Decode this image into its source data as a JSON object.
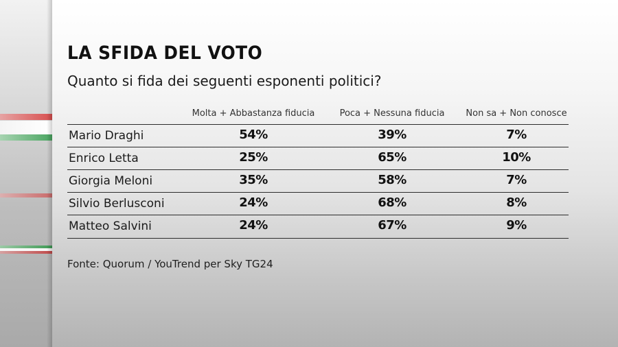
{
  "title": "LA SFIDA DEL VOTO",
  "subtitle": "Quanto si fida dei seguenti esponenti politici?",
  "source": "Fonte: Quorum / YouTrend per Sky TG24",
  "colors": {
    "text": "#111111",
    "stripe_red": "#d84f4f",
    "stripe_green": "#4aa561"
  },
  "chart_data": {
    "type": "table",
    "title": "LA SFIDA DEL VOTO",
    "subtitle": "Quanto si fida dei seguenti esponenti politici?",
    "columns": [
      "Molta + Abbastanza fiducia",
      "Poca + Nessuna fiducia",
      "Non sa + Non conosce"
    ],
    "rows": [
      {
        "name": "Mario Draghi",
        "values": [
          "54%",
          "39%",
          "7%"
        ]
      },
      {
        "name": "Enrico Letta",
        "values": [
          "25%",
          "65%",
          "10%"
        ]
      },
      {
        "name": "Giorgia Meloni",
        "values": [
          "35%",
          "58%",
          "7%"
        ]
      },
      {
        "name": "Silvio Berlusconi",
        "values": [
          "24%",
          "68%",
          "8%"
        ]
      },
      {
        "name": "Matteo Salvini",
        "values": [
          "24%",
          "67%",
          "9%"
        ]
      }
    ],
    "source": "Fonte: Quorum / YouTrend per Sky TG24"
  }
}
